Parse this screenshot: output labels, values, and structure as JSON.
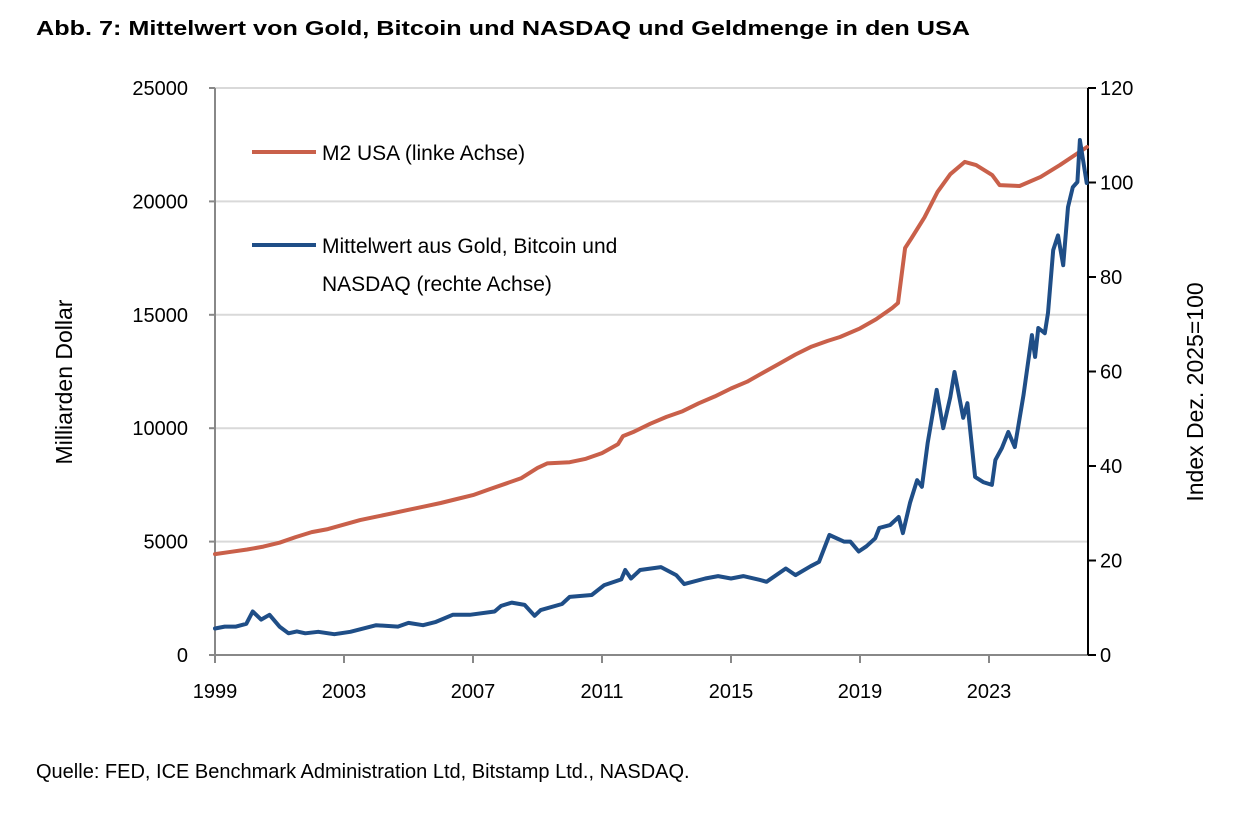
{
  "chart_data": {
    "type": "line",
    "title": "Abb. 7: Mittelwert von Gold, Bitcoin und NASDAQ und Geldmenge in den USA",
    "source": "Quelle: FED, ICE Benchmark Administration Ltd, Bitstamp Ltd., NASDAQ.",
    "ylabel_left": "Milliarden Dollar",
    "ylabel_right": "Index Dez. 2025=100",
    "xlim": [
      1999,
      2026.07
    ],
    "ylim_left": [
      0,
      25000
    ],
    "ylim_right": [
      0,
      120
    ],
    "x_ticks": [
      "1999",
      "2003",
      "2007",
      "2011",
      "2015",
      "2019",
      "2023"
    ],
    "y_ticks_left": [
      "0",
      "5000",
      "10000",
      "15000",
      "20000",
      "25000"
    ],
    "y_ticks_right": [
      "0",
      "20",
      "40",
      "60",
      "80",
      "100",
      "120"
    ],
    "grid": "horizontal",
    "legend_placement": "top-left",
    "series": [
      {
        "name": "M2 USA (linke Achse)",
        "axis": "left",
        "color": "#c9604a",
        "x": [
          1999.0,
          1999.5,
          2000.0,
          2000.5,
          2001.0,
          2001.5,
          2002.0,
          2002.5,
          2003.0,
          2003.5,
          2004.0,
          2004.5,
          2005.0,
          2005.5,
          2006.0,
          2006.5,
          2007.0,
          2007.5,
          2008.0,
          2008.5,
          2009.0,
          2009.3,
          2010.0,
          2010.5,
          2011.0,
          2011.5,
          2011.65,
          2012.0,
          2012.5,
          2013.0,
          2013.5,
          2014.0,
          2014.5,
          2015.0,
          2015.5,
          2016.0,
          2016.5,
          2017.0,
          2017.5,
          2018.0,
          2018.38,
          2019.0,
          2019.5,
          2020.0,
          2020.18,
          2020.4,
          2020.6,
          2021.0,
          2021.4,
          2021.8,
          2022.25,
          2022.6,
          2023.1,
          2023.33,
          2023.95,
          2024.6,
          2025.2,
          2026.04
        ],
        "values": [
          4450,
          4550,
          4650,
          4780,
          4950,
          5200,
          5420,
          5550,
          5750,
          5950,
          6100,
          6250,
          6400,
          6550,
          6700,
          6880,
          7050,
          7300,
          7550,
          7800,
          8250,
          8450,
          8500,
          8650,
          8900,
          9300,
          9650,
          9850,
          10200,
          10500,
          10750,
          11100,
          11400,
          11750,
          12050,
          12450,
          12850,
          13250,
          13600,
          13850,
          14020,
          14400,
          14800,
          15300,
          15520,
          17945,
          18385,
          19300,
          20410,
          21200,
          21740,
          21600,
          21160,
          20720,
          20680,
          21080,
          21600,
          22400
        ]
      },
      {
        "name": "Mittelwert aus Gold, Bitcoin und NASDAQ (rechte Achse)",
        "axis": "right",
        "color": "#1f4e87",
        "x": [
          1999.0,
          1999.3,
          1999.65,
          1999.97,
          2000.17,
          2000.43,
          2000.69,
          2001.0,
          2001.28,
          2001.54,
          2001.8,
          2002.2,
          2002.7,
          2003.2,
          2004.0,
          2004.67,
          2005.0,
          2005.45,
          2005.85,
          2006.37,
          2006.9,
          2007.67,
          2007.87,
          2008.2,
          2008.6,
          2008.91,
          2009.1,
          2009.76,
          2010.0,
          2010.68,
          2011.07,
          2011.6,
          2011.72,
          2011.9,
          2012.18,
          2012.83,
          2013.3,
          2013.55,
          2014.2,
          2014.6,
          2015.0,
          2015.38,
          2015.9,
          2016.1,
          2016.7,
          2017.0,
          2017.47,
          2017.73,
          2018.05,
          2018.5,
          2018.7,
          2018.96,
          2019.2,
          2019.47,
          2019.6,
          2019.93,
          2020.2,
          2020.33,
          2020.55,
          2020.77,
          2020.92,
          2021.1,
          2021.38,
          2021.58,
          2021.8,
          2021.93,
          2022.2,
          2022.33,
          2022.57,
          2022.82,
          2023.09,
          2023.2,
          2023.4,
          2023.6,
          2023.8,
          2024.07,
          2024.33,
          2024.43,
          2024.53,
          2024.73,
          2024.83,
          2024.99,
          2025.14,
          2025.3,
          2025.45,
          2025.6,
          2025.74,
          2025.82,
          2026.03
        ],
        "values": [
          5.6,
          6.0,
          6.0,
          6.6,
          9.2,
          7.5,
          8.5,
          6.0,
          4.6,
          5.0,
          4.6,
          4.9,
          4.4,
          4.9,
          6.3,
          6.0,
          6.8,
          6.3,
          7.0,
          8.5,
          8.5,
          9.2,
          10.4,
          11.1,
          10.6,
          8.3,
          9.5,
          10.8,
          12.3,
          12.7,
          14.8,
          16.0,
          18.0,
          16.2,
          18.0,
          18.6,
          16.9,
          15.0,
          16.2,
          16.7,
          16.2,
          16.7,
          15.9,
          15.5,
          18.3,
          16.9,
          18.8,
          19.7,
          25.4,
          24.0,
          24.0,
          21.9,
          23.0,
          24.7,
          26.9,
          27.5,
          29.2,
          25.8,
          32.2,
          37.0,
          35.6,
          44.9,
          56.1,
          48.0,
          54.6,
          59.9,
          50.2,
          53.3,
          37.7,
          36.6,
          36.0,
          41.3,
          43.8,
          47.2,
          44.0,
          55.0,
          67.7,
          63.1,
          69.2,
          68.1,
          72.4,
          85.7,
          88.8,
          82.5,
          94.8,
          99.0,
          100.1,
          109.0,
          99.9
        ]
      }
    ],
    "legend": {
      "m2_label": "M2 USA (linke Achse)",
      "avg_label_line1": "Mittelwert aus Gold, Bitcoin und",
      "avg_label_line2": "NASDAQ (rechte Achse)"
    }
  }
}
